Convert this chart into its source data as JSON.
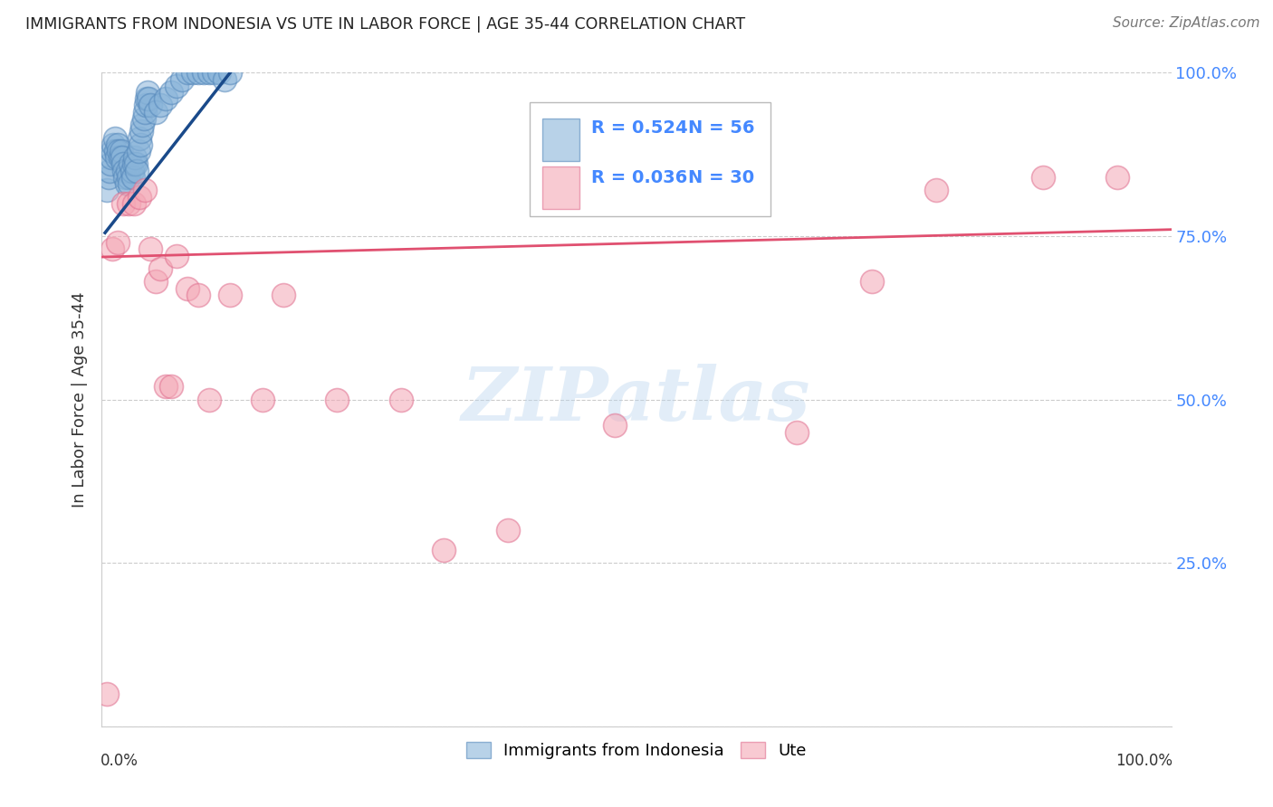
{
  "title": "IMMIGRANTS FROM INDONESIA VS UTE IN LABOR FORCE | AGE 35-44 CORRELATION CHART",
  "source": "Source: ZipAtlas.com",
  "ylabel": "In Labor Force | Age 35-44",
  "xlim": [
    0.0,
    1.0
  ],
  "ylim": [
    0.0,
    1.0
  ],
  "yticks": [
    0.0,
    0.25,
    0.5,
    0.75,
    1.0
  ],
  "xticks": [
    0.0,
    0.1,
    0.2,
    0.3,
    0.4,
    0.5,
    0.6,
    0.7,
    0.8,
    0.9,
    1.0
  ],
  "ytick_labels_right": [
    "",
    "25.0%",
    "50.0%",
    "75.0%",
    "100.0%"
  ],
  "watermark_text": "ZIPatlas",
  "blue_color": "#89B4D9",
  "blue_edge_color": "#5588BB",
  "pink_color": "#F4A7B5",
  "pink_edge_color": "#E07090",
  "blue_line_color": "#1A4A8A",
  "pink_line_color": "#E05070",
  "grid_color": "#CCCCCC",
  "right_label_color": "#4488FF",
  "blue_scatter_x": [
    0.005,
    0.006,
    0.007,
    0.008,
    0.009,
    0.01,
    0.011,
    0.012,
    0.013,
    0.014,
    0.015,
    0.016,
    0.017,
    0.018,
    0.019,
    0.02,
    0.021,
    0.022,
    0.023,
    0.024,
    0.025,
    0.026,
    0.027,
    0.028,
    0.029,
    0.03,
    0.031,
    0.032,
    0.033,
    0.034,
    0.035,
    0.036,
    0.037,
    0.038,
    0.039,
    0.04,
    0.041,
    0.042,
    0.043,
    0.044,
    0.045,
    0.05,
    0.055,
    0.06,
    0.065,
    0.07,
    0.075,
    0.08,
    0.085,
    0.09,
    0.095,
    0.1,
    0.105,
    0.11,
    0.115,
    0.12
  ],
  "blue_scatter_y": [
    0.82,
    0.84,
    0.85,
    0.86,
    0.87,
    0.88,
    0.89,
    0.9,
    0.88,
    0.87,
    0.89,
    0.88,
    0.87,
    0.88,
    0.87,
    0.86,
    0.85,
    0.84,
    0.83,
    0.85,
    0.84,
    0.83,
    0.86,
    0.85,
    0.84,
    0.86,
    0.87,
    0.86,
    0.85,
    0.88,
    0.9,
    0.89,
    0.91,
    0.92,
    0.93,
    0.94,
    0.95,
    0.96,
    0.97,
    0.96,
    0.95,
    0.94,
    0.95,
    0.96,
    0.97,
    0.98,
    0.99,
    1.0,
    1.0,
    1.0,
    1.0,
    1.0,
    1.0,
    1.0,
    0.99,
    1.0
  ],
  "pink_scatter_x": [
    0.005,
    0.01,
    0.015,
    0.02,
    0.025,
    0.03,
    0.035,
    0.04,
    0.045,
    0.05,
    0.055,
    0.06,
    0.065,
    0.07,
    0.08,
    0.09,
    0.1,
    0.12,
    0.15,
    0.17,
    0.22,
    0.28,
    0.32,
    0.38,
    0.48,
    0.65,
    0.72,
    0.78,
    0.88,
    0.95
  ],
  "pink_scatter_y": [
    0.05,
    0.73,
    0.74,
    0.8,
    0.8,
    0.8,
    0.81,
    0.82,
    0.73,
    0.68,
    0.7,
    0.52,
    0.52,
    0.72,
    0.67,
    0.66,
    0.5,
    0.66,
    0.5,
    0.66,
    0.5,
    0.5,
    0.27,
    0.3,
    0.46,
    0.45,
    0.68,
    0.82,
    0.84,
    0.84
  ],
  "blue_trend_x": [
    0.003,
    0.12
  ],
  "blue_trend_y": [
    0.755,
    1.0
  ],
  "pink_trend_x": [
    0.0,
    1.0
  ],
  "pink_trend_y": [
    0.718,
    0.76
  ]
}
